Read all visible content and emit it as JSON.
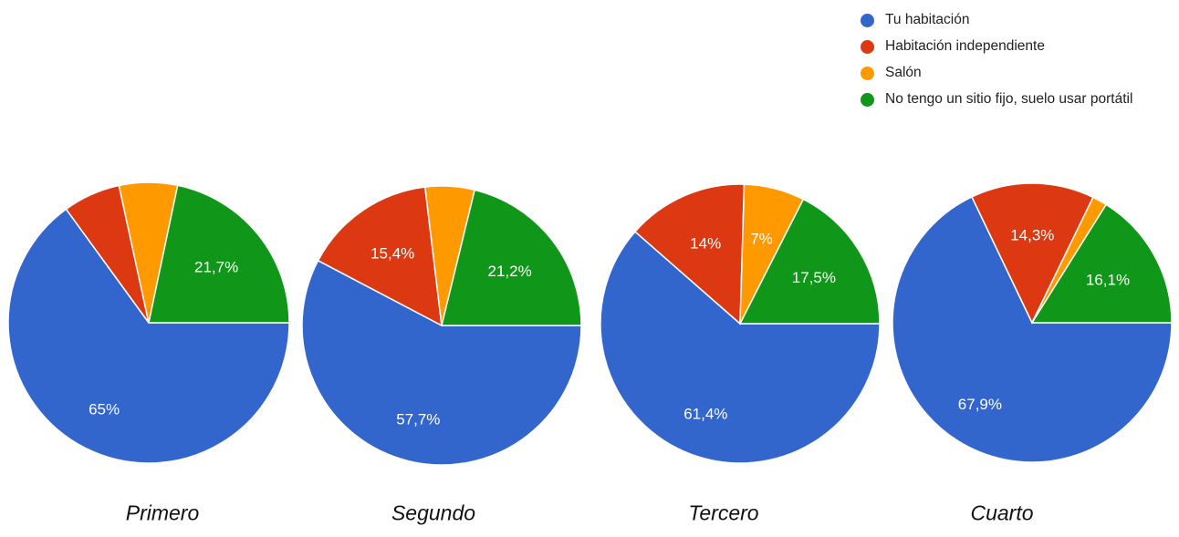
{
  "chart_data": [
    {
      "type": "pie",
      "title": "Primero",
      "categories": [
        "Tu habitación",
        "Habitación independiente",
        "Salón",
        "No tengo un sitio fijo, suelo usar portátil"
      ],
      "values": [
        65,
        6.6,
        6.7,
        21.7
      ],
      "labels": [
        "65%",
        "",
        "",
        "21,7%"
      ]
    },
    {
      "type": "pie",
      "title": "Segundo",
      "categories": [
        "Tu habitación",
        "Habitación independiente",
        "Salón",
        "No tengo un sitio fijo, suelo usar portátil"
      ],
      "values": [
        57.7,
        15.4,
        5.7,
        21.2
      ],
      "labels": [
        "57,7%",
        "15,4%",
        "",
        "21,2%"
      ]
    },
    {
      "type": "pie",
      "title": "Tercero",
      "categories": [
        "Tu habitación",
        "Habitación independiente",
        "Salón",
        "No tengo un sitio fijo, suelo usar portátil"
      ],
      "values": [
        61.4,
        14,
        7,
        17.5
      ],
      "labels": [
        "61,4%",
        "14%",
        "7%",
        "17,5%"
      ]
    },
    {
      "type": "pie",
      "title": "Cuarto",
      "categories": [
        "Tu habitación",
        "Habitación independiente",
        "Salón",
        "No tengo un sitio fijo, suelo usar portátil"
      ],
      "values": [
        67.9,
        14.3,
        1.7,
        16.1
      ],
      "labels": [
        "67,9%",
        "14,3%",
        "",
        "16,1%"
      ]
    }
  ],
  "legend": {
    "placement": "top-right",
    "items": [
      {
        "label": "Tu habitación",
        "color": "#3366cc"
      },
      {
        "label": "Habitación independiente",
        "color": "#dc3912"
      },
      {
        "label": "Salón",
        "color": "#ff9900"
      },
      {
        "label": "No tengo un sitio fijo, suelo usar portátil",
        "color": "#109618"
      }
    ]
  },
  "captions": [
    "Primero",
    "Segundo",
    "Tercero",
    "Cuarto"
  ]
}
